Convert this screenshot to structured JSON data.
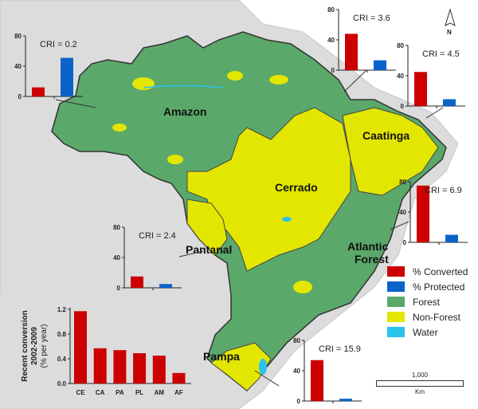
{
  "biome_labels": {
    "amazon": "Amazon",
    "cerrado": "Cerrado",
    "caatinga": "Caatinga",
    "pantanal": "Pantanal",
    "atlantic_forest_1": "Atlantic",
    "atlantic_forest_2": "Forest",
    "pampa": "Pampa"
  },
  "north_arrow": "N",
  "legend": [
    {
      "label": "% Converted",
      "color": "#cc0000"
    },
    {
      "label": "% Protected",
      "color": "#0a63c9"
    },
    {
      "label": "Forest",
      "color": "#5ba86b"
    },
    {
      "label": "Non-Forest",
      "color": "#e3e600"
    },
    {
      "label": "Water",
      "color": "#29c3ee"
    }
  ],
  "scale_bar": {
    "value": "1,000",
    "unit": "Km"
  },
  "colors": {
    "converted": "#cc0000",
    "protected": "#0a63c9",
    "forest": "#5ba86b",
    "nonforest": "#e3e600",
    "water": "#29c3ee",
    "land": "#dcdcdc"
  },
  "chart_data": [
    {
      "type": "bar",
      "title": "CRI = 0.2",
      "biome": "Amazon",
      "categories": [
        "% Converted",
        "% Protected"
      ],
      "values": [
        12,
        51
      ],
      "ylim": [
        0,
        80
      ],
      "yticks": [
        "0",
        "40",
        "80"
      ]
    },
    {
      "type": "bar",
      "title": "CRI = 3.6",
      "categories": [
        "% Converted",
        "% Protected"
      ],
      "values": [
        48,
        13
      ],
      "ylim": [
        0,
        80
      ],
      "yticks": [
        "0",
        "40",
        "80"
      ]
    },
    {
      "type": "bar",
      "title": "CRI = 4.5",
      "biome": "Caatinga",
      "categories": [
        "% Converted",
        "% Protected"
      ],
      "values": [
        45,
        9
      ],
      "ylim": [
        0,
        80
      ],
      "yticks": [
        "0",
        "40",
        "80"
      ]
    },
    {
      "type": "bar",
      "title": "CRI = 6.9",
      "biome": "Atlantic Forest",
      "categories": [
        "% Converted",
        "% Protected"
      ],
      "values": [
        75,
        10
      ],
      "ylim": [
        0,
        80
      ],
      "yticks": [
        "0",
        "40",
        "80"
      ]
    },
    {
      "type": "bar",
      "title": "CRI = 2.4",
      "biome": "Pantanal",
      "categories": [
        "% Converted",
        "% Protected"
      ],
      "values": [
        15,
        5
      ],
      "ylim": [
        0,
        80
      ],
      "yticks": [
        "0",
        "40",
        "80"
      ]
    },
    {
      "type": "bar",
      "title": "CRI = 15.9",
      "biome": "Pampa",
      "categories": [
        "% Converted",
        "% Protected"
      ],
      "values": [
        54,
        3
      ],
      "ylim": [
        0,
        80
      ],
      "yticks": [
        "0",
        "40",
        "80"
      ]
    },
    {
      "type": "bar",
      "title": "",
      "ylabel_lines": [
        "Recent conversion",
        "2002-2009",
        "(% per year)"
      ],
      "categories": [
        "CE",
        "CA",
        "PA",
        "PL",
        "AM",
        "AF"
      ],
      "values": [
        1.17,
        0.57,
        0.54,
        0.49,
        0.45,
        0.17
      ],
      "ylim": [
        0,
        1.2
      ],
      "yticks": [
        "0.0",
        "0.4",
        "0.8",
        "1.2"
      ]
    }
  ]
}
